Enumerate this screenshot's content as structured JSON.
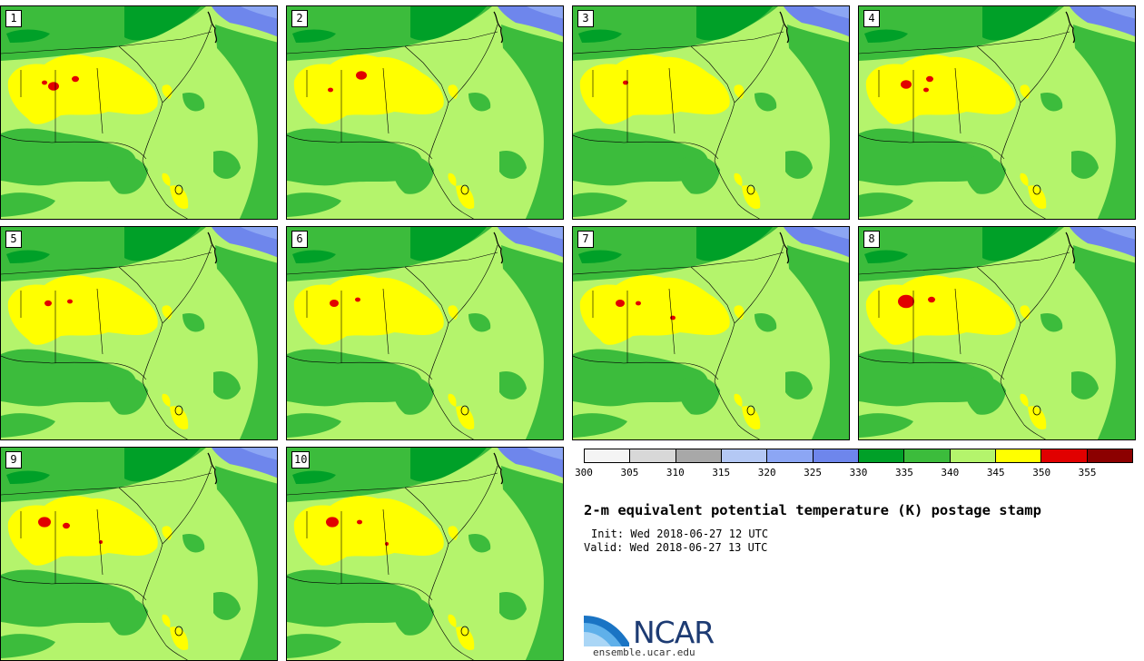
{
  "title": "2-m equivalent potential temperature (K) postage stamp",
  "init": "Init: Wed 2018-06-27 12 UTC",
  "valid": "Valid: Wed 2018-06-27 13 UTC",
  "logo_text": "NCAR",
  "site": "ensemble.ucar.edu",
  "colorbar": {
    "ticks": [
      "300",
      "305",
      "310",
      "315",
      "320",
      "325",
      "330",
      "335",
      "340",
      "345",
      "350",
      "355"
    ],
    "colors": [
      "#f4f4f4",
      "#d8d8d8",
      "#a8a8a8",
      "#b4c8f4",
      "#8ca6f4",
      "#6e86ec",
      "#00a028",
      "#3cbc3c",
      "#b4f46c",
      "#ffff00",
      "#e10000",
      "#8c0000"
    ]
  },
  "colors": {
    "land_base": "#b4f46c",
    "dark_green": "#3cbc3c",
    "forest_green": "#00a028",
    "yellow": "#ffff00",
    "red": "#e10000",
    "blue": "#6e86ec",
    "light_blue": "#8ca6f4"
  },
  "members": [
    {
      "label": "1",
      "red_spots": 3
    },
    {
      "label": "2",
      "red_spots": 2
    },
    {
      "label": "3",
      "red_spots": 1
    },
    {
      "label": "4",
      "red_spots": 3
    },
    {
      "label": "5",
      "red_spots": 2
    },
    {
      "label": "6",
      "red_spots": 2
    },
    {
      "label": "7",
      "red_spots": 3
    },
    {
      "label": "8",
      "red_spots": 2
    },
    {
      "label": "9",
      "red_spots": 3
    },
    {
      "label": "10",
      "red_spots": 3
    }
  ]
}
